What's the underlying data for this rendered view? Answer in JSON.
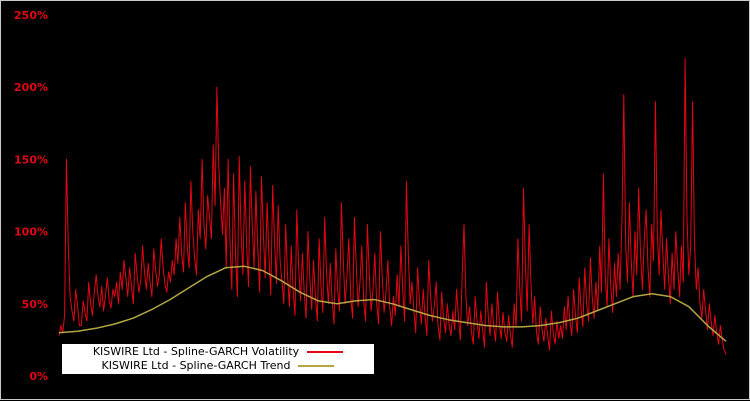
{
  "colors": {
    "background": "#000000",
    "frame_border": "#c9c9c9",
    "axis_label": "#e30613",
    "volatility_red": "#e30613",
    "trend_yellow": "#b5a642",
    "legend_bg": "#ffffff",
    "legend_text": "#000000"
  },
  "legend": {
    "items": [
      {
        "label": "KISWIRE Ltd - Spline-GARCH Volatility"
      },
      {
        "label": "KISWIRE Ltd - Spline-GARCH Trend"
      }
    ]
  },
  "chart_data": {
    "type": "line",
    "title": "",
    "xlabel": "",
    "ylabel": "",
    "ylim": [
      0,
      250
    ],
    "grid": false,
    "legend_position": "bottom-left",
    "yticks": [
      {
        "value": 0,
        "label": "0%"
      },
      {
        "value": 50,
        "label": "50%"
      },
      {
        "value": 100,
        "label": "100%"
      },
      {
        "value": 150,
        "label": "150%"
      },
      {
        "value": 200,
        "label": "200%"
      },
      {
        "value": 250,
        "label": "250%"
      }
    ],
    "series": [
      {
        "name": "KISWIRE Ltd - Spline-GARCH Volatility",
        "color": "#e30613",
        "unit": "percent",
        "values": [
          28,
          35,
          30,
          42,
          150,
          90,
          55,
          45,
          38,
          60,
          48,
          35,
          35,
          52,
          44,
          38,
          65,
          50,
          42,
          58,
          70,
          55,
          48,
          62,
          45,
          55,
          68,
          52,
          47,
          60,
          55,
          65,
          50,
          72,
          60,
          80,
          68,
          55,
          75,
          62,
          50,
          85,
          70,
          58,
          66,
          90,
          72,
          60,
          78,
          65,
          55,
          88,
          74,
          62,
          70,
          95,
          76,
          64,
          58,
          72,
          65,
          80,
          70,
          95,
          78,
          110,
          85,
          72,
          120,
          90,
          75,
          135,
          100,
          82,
          70,
          115,
          95,
          150,
          105,
          88,
          125,
          110,
          95,
          160,
          118,
          200,
          145,
          120,
          98,
          130,
          75,
          150,
          95,
          60,
          140,
          85,
          55,
          152,
          100,
          70,
          135,
          90,
          62,
          145,
          105,
          75,
          128,
          88,
          58,
          138,
          98,
          68,
          120,
          84,
          56,
          132,
          94,
          64,
          118,
          80,
          65,
          50,
          105,
          70,
          48,
          90,
          60,
          42,
          115,
          75,
          52,
          85,
          58,
          40,
          100,
          68,
          46,
          80,
          55,
          38,
          95,
          62,
          44,
          110,
          72,
          50,
          78,
          52,
          36,
          88,
          60,
          45,
          120,
          80,
          50,
          70,
          95,
          55,
          40,
          110,
          75,
          48,
          65,
          90,
          52,
          38,
          105,
          70,
          45,
          60,
          85,
          50,
          36,
          100,
          68,
          44,
          58,
          80,
          48,
          35,
          55,
          42,
          70,
          48,
          90,
          60,
          38,
          135,
          85,
          50,
          65,
          45,
          30,
          75,
          52,
          36,
          60,
          42,
          28,
          80,
          55,
          38,
          48,
          65,
          35,
          25,
          58,
          40,
          30,
          50,
          35,
          28,
          45,
          32,
          60,
          40,
          25,
          70,
          105,
          55,
          35,
          48,
          30,
          22,
          55,
          38,
          26,
          45,
          32,
          20,
          65,
          42,
          28,
          50,
          34,
          24,
          58,
          38,
          26,
          44,
          30,
          24,
          42,
          28,
          20,
          50,
          34,
          95,
          60,
          38,
          130,
          80,
          45,
          105,
          65,
          36,
          55,
          30,
          22,
          48,
          32,
          24,
          40,
          28,
          18,
          45,
          30,
          22,
          38,
          26,
          35,
          26,
          48,
          32,
          55,
          38,
          28,
          60,
          42,
          30,
          68,
          46,
          34,
          75,
          50,
          38,
          82,
          55,
          40,
          65,
          45,
          90,
          58,
          140,
          70,
          48,
          95,
          62,
          44,
          78,
          55,
          85,
          60,
          110,
          195,
          90,
          65,
          120,
          80,
          55,
          100,
          70,
          130,
          85,
          60,
          95,
          115,
          75,
          55,
          105,
          80,
          190,
          100,
          70,
          115,
          85,
          60,
          95,
          70,
          50,
          85,
          60,
          100,
          75,
          55,
          90,
          65,
          220,
          110,
          70,
          90,
          190,
          95,
          60,
          75,
          50,
          40,
          60,
          45,
          32,
          50,
          38,
          28,
          42,
          30,
          22,
          35,
          25,
          18,
          15
        ]
      },
      {
        "name": "KISWIRE Ltd - Spline-GARCH Trend",
        "color": "#b5a642",
        "unit": "percent",
        "values": [
          30,
          31,
          33,
          36,
          40,
          46,
          53,
          61,
          69,
          75,
          76,
          73,
          66,
          58,
          52,
          50,
          52,
          53,
          50,
          46,
          42,
          39,
          37,
          35,
          34,
          34,
          35,
          37,
          40,
          45,
          50,
          55,
          57,
          55,
          48,
          35,
          24
        ]
      }
    ]
  }
}
